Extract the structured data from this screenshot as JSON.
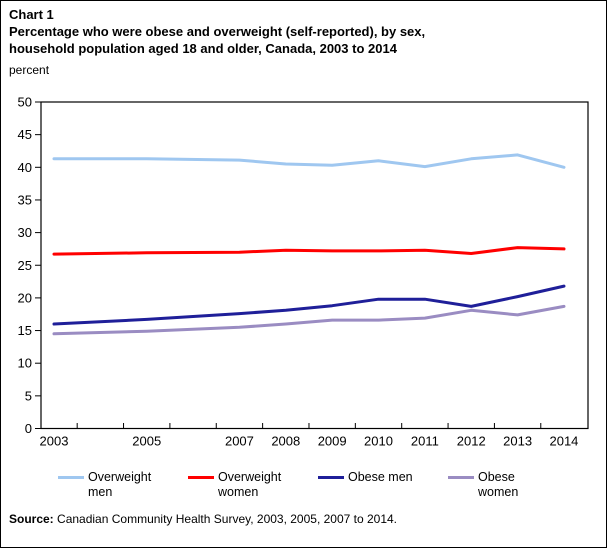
{
  "header": {
    "chart_label": "Chart 1",
    "title_line1": "Percentage who were obese and overweight (self-reported), by sex,",
    "title_line2": "household population aged 18 and older, Canada, 2003 to 2014",
    "axis_unit": "percent"
  },
  "chart_data": {
    "type": "line",
    "title": "Percentage who were obese and overweight (self-reported), by sex, household population aged 18 and older, Canada, 2003 to 2014",
    "xlabel": "",
    "ylabel": "percent",
    "ylim": [
      0,
      50
    ],
    "y_tick_interval": 5,
    "grid": false,
    "legend_position": "bottom",
    "x": [
      2003,
      2005,
      2007,
      2008,
      2009,
      2010,
      2011,
      2012,
      2013,
      2014
    ],
    "series": [
      {
        "name": "Overweight men",
        "color": "#9FC7F0",
        "values": [
          41.3,
          41.3,
          41.1,
          40.5,
          40.3,
          41.0,
          40.1,
          41.3,
          41.9,
          40.0
        ]
      },
      {
        "name": "Overweight women",
        "color": "#FF0000",
        "values": [
          26.7,
          26.9,
          27.0,
          27.3,
          27.2,
          27.2,
          27.3,
          26.8,
          27.7,
          27.5
        ]
      },
      {
        "name": "Obese men",
        "color": "#1F1F99",
        "values": [
          16.0,
          16.7,
          17.6,
          18.1,
          18.8,
          19.8,
          19.8,
          18.7,
          20.2,
          21.8
        ]
      },
      {
        "name": "Obese women",
        "color": "#9A8CC2",
        "values": [
          14.5,
          14.9,
          15.5,
          16.0,
          16.6,
          16.6,
          16.9,
          18.1,
          17.4,
          18.7
        ]
      }
    ]
  },
  "source": {
    "prefix": "Source:",
    "text": " Canadian Community Health Survey, 2003, 2005, 2007 to 2014."
  },
  "colors": {
    "axis": "#000000",
    "background": "#ffffff"
  }
}
